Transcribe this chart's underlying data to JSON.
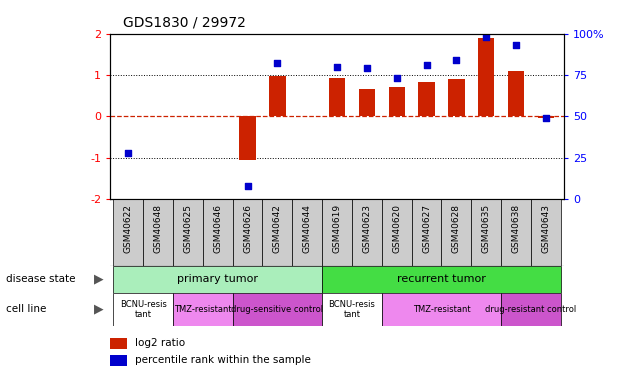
{
  "title": "GDS1830 / 29972",
  "samples": [
    "GSM40622",
    "GSM40648",
    "GSM40625",
    "GSM40646",
    "GSM40626",
    "GSM40642",
    "GSM40644",
    "GSM40619",
    "GSM40623",
    "GSM40620",
    "GSM40627",
    "GSM40628",
    "GSM40635",
    "GSM40638",
    "GSM40643"
  ],
  "log2_ratio": [
    0.0,
    0.0,
    0.0,
    0.0,
    -1.05,
    0.97,
    0.0,
    0.93,
    0.65,
    0.7,
    0.82,
    0.9,
    1.9,
    1.1,
    -0.05
  ],
  "percentile": [
    28,
    null,
    null,
    null,
    8,
    82,
    null,
    80,
    79,
    73,
    81,
    84,
    98,
    93,
    49
  ],
  "bar_color": "#cc2200",
  "dot_color": "#0000cc",
  "disease_state": [
    {
      "label": "primary tumor",
      "start": 0,
      "end": 7,
      "color": "#aaeebb"
    },
    {
      "label": "recurrent tumor",
      "start": 7,
      "end": 15,
      "color": "#44dd44"
    }
  ],
  "cell_line": [
    {
      "label": "BCNU-resis\ntant",
      "start": 0,
      "end": 2,
      "color": "#ffffff"
    },
    {
      "label": "TMZ-resistant",
      "start": 2,
      "end": 4,
      "color": "#ee88ee"
    },
    {
      "label": "drug-sensitive control",
      "start": 4,
      "end": 7,
      "color": "#cc55cc"
    },
    {
      "label": "BCNU-resis\ntant",
      "start": 7,
      "end": 9,
      "color": "#ffffff"
    },
    {
      "label": "TMZ-resistant",
      "start": 9,
      "end": 13,
      "color": "#ee88ee"
    },
    {
      "label": "drug-resistant control",
      "start": 13,
      "end": 15,
      "color": "#cc55cc"
    }
  ],
  "ylim": [
    -2,
    2
  ],
  "yticks_left": [
    -2,
    -1,
    0,
    1,
    2
  ],
  "yticks_right": [
    0,
    25,
    50,
    75,
    100
  ],
  "background_color": "#ffffff",
  "tick_bg_color": "#cccccc"
}
